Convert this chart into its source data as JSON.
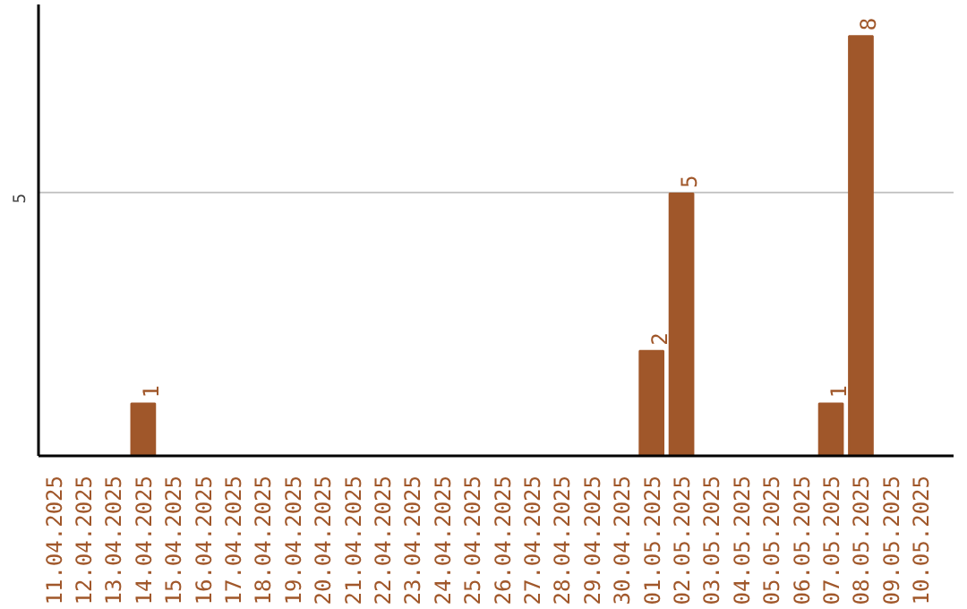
{
  "chart_data": {
    "type": "bar",
    "categories": [
      "11.04.2025",
      "12.04.2025",
      "13.04.2025",
      "14.04.2025",
      "15.04.2025",
      "16.04.2025",
      "17.04.2025",
      "18.04.2025",
      "19.04.2025",
      "20.04.2025",
      "21.04.2025",
      "22.04.2025",
      "23.04.2025",
      "24.04.2025",
      "25.04.2025",
      "26.04.2025",
      "27.04.2025",
      "28.04.2025",
      "29.04.2025",
      "30.04.2025",
      "01.05.2025",
      "02.05.2025",
      "03.05.2025",
      "04.05.2025",
      "05.05.2025",
      "06.05.2025",
      "07.05.2025",
      "08.05.2025",
      "09.05.2025",
      "10.05.2025"
    ],
    "values": [
      0,
      0,
      0,
      1,
      0,
      0,
      0,
      0,
      0,
      0,
      0,
      0,
      0,
      0,
      0,
      0,
      0,
      0,
      0,
      0,
      2,
      5,
      0,
      0,
      0,
      0,
      1,
      8,
      0,
      0
    ],
    "value_labels": [
      null,
      null,
      null,
      "1",
      null,
      null,
      null,
      null,
      null,
      null,
      null,
      null,
      null,
      null,
      null,
      null,
      null,
      null,
      null,
      null,
      "2",
      "5",
      null,
      null,
      null,
      null,
      "1",
      "8",
      null,
      null
    ],
    "color": "#a0572a",
    "ylim": [
      0,
      8.6
    ],
    "yticks": [
      5
    ],
    "grid": "y"
  }
}
